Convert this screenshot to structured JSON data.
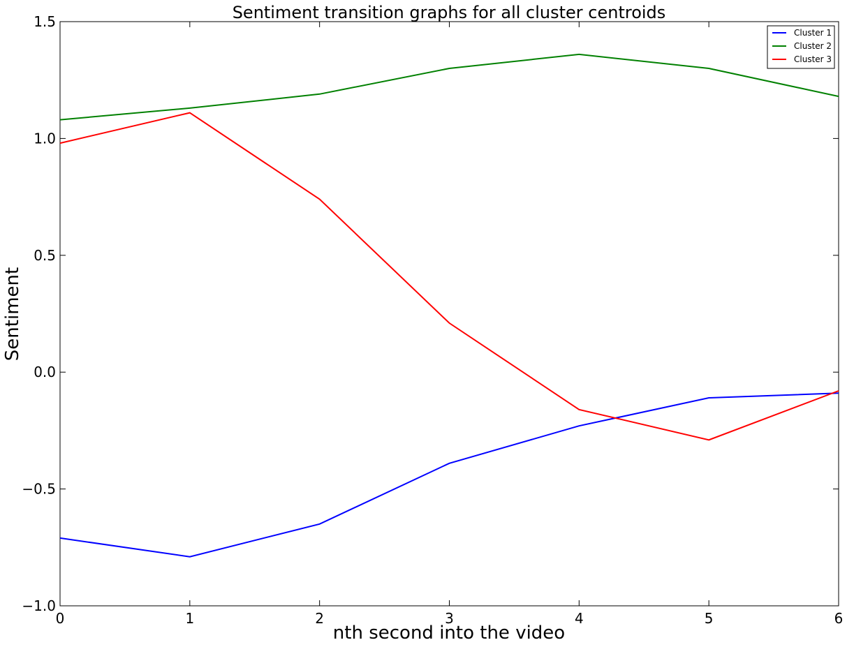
{
  "chart_data": {
    "type": "line",
    "title": "Sentiment transition graphs for all cluster centroids",
    "xlabel": "nth second into the video",
    "ylabel": "Sentiment",
    "x": [
      0,
      1,
      2,
      3,
      4,
      5,
      6
    ],
    "xlim": [
      0,
      6
    ],
    "ylim": [
      -1.0,
      1.5
    ],
    "xticks": [
      "0",
      "1",
      "2",
      "3",
      "4",
      "5",
      "6"
    ],
    "yticks": [
      "1.5",
      "1.0",
      "0.5",
      "0.0",
      "−0.5",
      "−1.0"
    ],
    "ytick_values": [
      1.5,
      1.0,
      0.5,
      0.0,
      -0.5,
      -1.0
    ],
    "grid": false,
    "legend_position": "top-right",
    "series": [
      {
        "name": "Cluster 1",
        "color": "#0000ff",
        "values": [
          -0.71,
          -0.79,
          -0.65,
          -0.39,
          -0.23,
          -0.11,
          -0.09
        ]
      },
      {
        "name": "Cluster 2",
        "color": "#008000",
        "values": [
          1.08,
          1.13,
          1.19,
          1.3,
          1.36,
          1.3,
          1.18
        ]
      },
      {
        "name": "Cluster 3",
        "color": "#ff0000",
        "values": [
          0.98,
          1.11,
          0.74,
          0.21,
          -0.16,
          -0.29,
          -0.08
        ]
      }
    ]
  }
}
